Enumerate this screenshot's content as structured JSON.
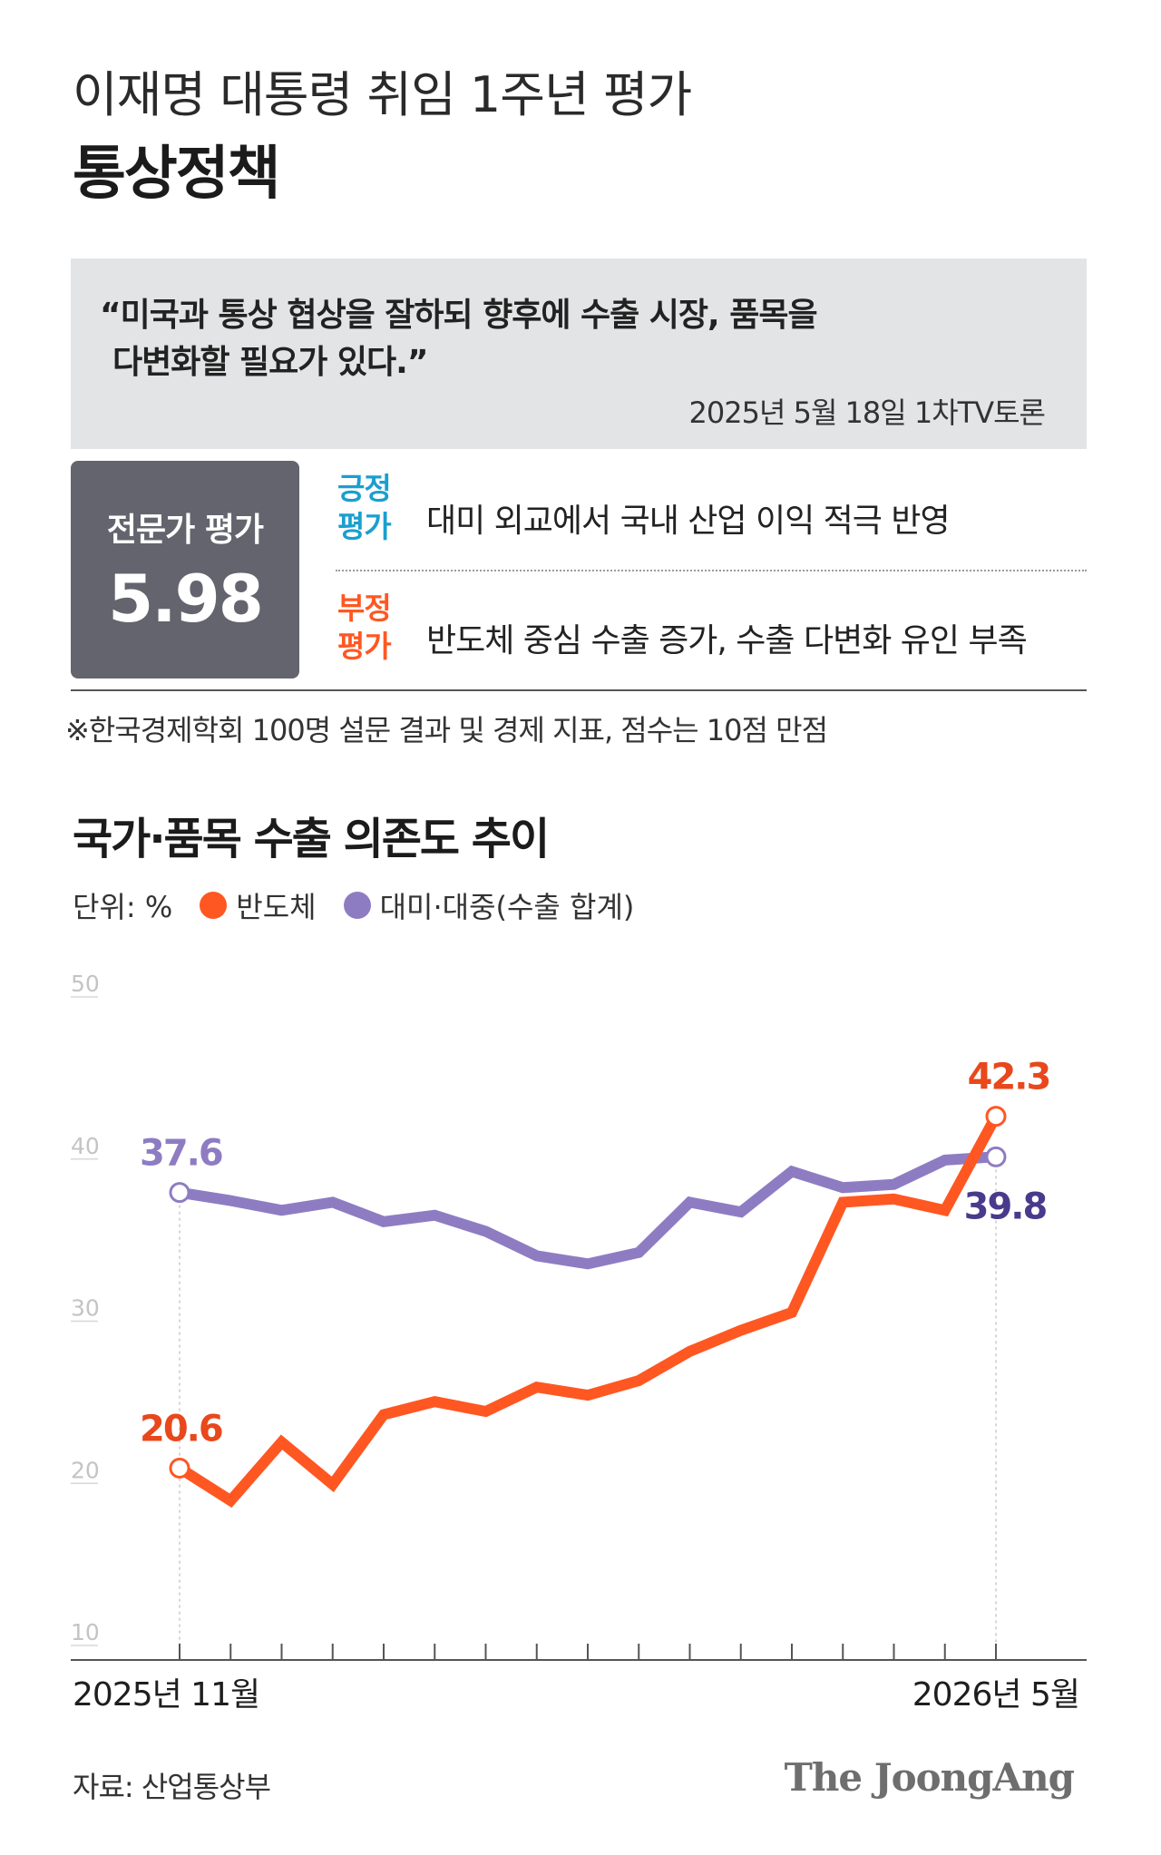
{
  "header": {
    "line1": "이재명 대통령 취임 1주년 평가",
    "line2": "통상정책"
  },
  "quote": {
    "line1": "“미국과 통상 협상을 잘하되 향후에 수출 시장, 품목을",
    "line2": "다변화할 필요가 있다.”",
    "source": "2025년 5월 18일 1차TV토론"
  },
  "expert": {
    "label": "전문가 평가",
    "score": "5.98",
    "positive_tag_1": "긍정",
    "positive_tag_2": "평가",
    "positive_text": "대미 외교에서 국내 산업 이익 적극 반영",
    "negative_tag_1": "부정",
    "negative_tag_2": "평가",
    "negative_text": "반도체 중심 수출 증가, 수출 다변화 유인 부족"
  },
  "footnote": "※한국경제학회 100명 설문 결과 및 경제 지표, 점수는 10점 만점",
  "legend": {
    "unit": "단위: %"
  },
  "colors": {
    "semiconductor": "#ff5722",
    "us_china": "#8e7cc3",
    "semiconductor_label": "#e8481c",
    "us_china_label": "#4a3a8c",
    "positive": "#1a9fcf"
  },
  "chart_data": {
    "type": "line",
    "title": "국가·품목 수출 의존도 추이",
    "ylim": [
      10,
      50
    ],
    "yticks": [
      "10",
      "20",
      "30",
      "40",
      "50"
    ],
    "x_start_label": "2025년 11월",
    "x_end_label": "2026년 5월",
    "series": [
      {
        "name": "반도체",
        "values": [
          20.6,
          18.6,
          22.2,
          19.6,
          23.9,
          24.7,
          24.1,
          25.6,
          25.1,
          26.0,
          27.8,
          29.1,
          30.2,
          37.0,
          37.2,
          36.5,
          42.3
        ],
        "first_label": "20.6",
        "last_label": "42.3"
      },
      {
        "name": "대미·대중(수출 합계)",
        "values": [
          37.6,
          37.1,
          36.5,
          37.0,
          35.8,
          36.2,
          35.2,
          33.7,
          33.2,
          33.9,
          37.0,
          36.4,
          38.9,
          37.9,
          38.1,
          39.6,
          39.8
        ],
        "first_label": "37.6",
        "last_label": "39.8"
      }
    ],
    "legend_placement": "top-left",
    "grid": false
  },
  "source": "자료: 산업통상부",
  "brand": "The JoongAng"
}
